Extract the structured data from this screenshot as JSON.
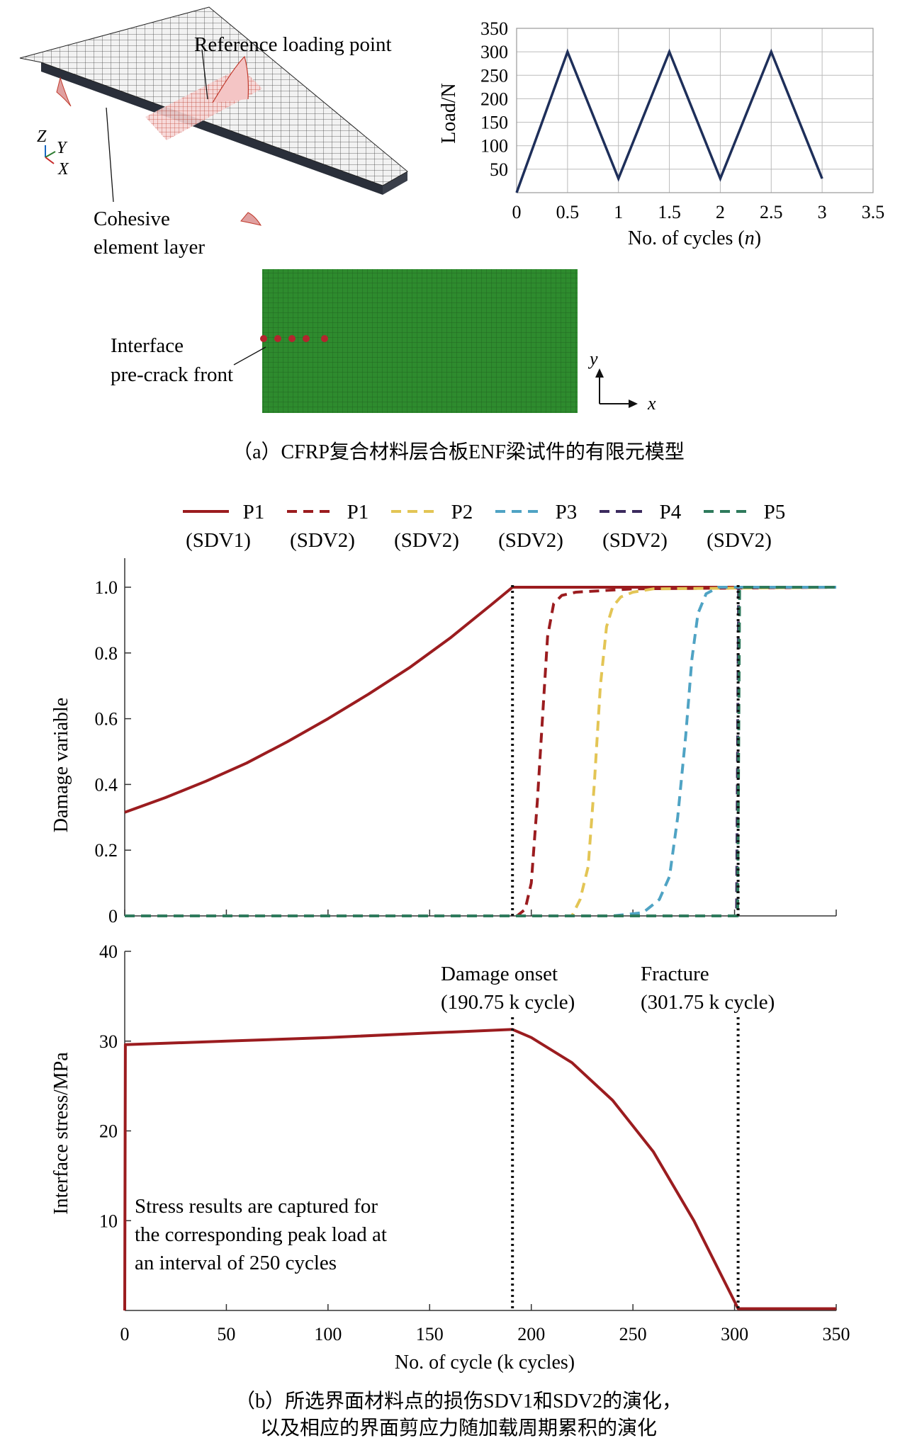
{
  "panel_a": {
    "caption": "（a）CFRP复合材料层合板ENF梁试件的有限元模型",
    "model_3d": {
      "reference_label": "Reference loading point",
      "cohesive_label_1": "Cohesive",
      "cohesive_label_2": "element layer",
      "axis_z": "Z",
      "axis_y": "Y",
      "axis_x": "X"
    },
    "mesh_2d": {
      "precrack_label_1": "Interface",
      "precrack_label_2": "pre-crack front",
      "axis_y": "y",
      "axis_x": "x",
      "colors": {
        "mesh": "#2e8b2e",
        "markers": "#b3262e"
      }
    }
  },
  "panel_b": {
    "caption_line1": "（b）所选界面材料点的损伤SDV1和SDV2的演化，",
    "caption_line2": "以及相应的界面剪应力随加载周期累积的演化"
  },
  "chart_data": [
    {
      "type": "line",
      "x": [
        0,
        0.5,
        1,
        1.5,
        2,
        2.5,
        3
      ],
      "values": [
        0,
        300,
        30,
        300,
        30,
        300,
        30
      ],
      "xlabel": "No. of cycles (n)",
      "ylabel": "Load/N",
      "xlim": [
        0,
        3.5
      ],
      "ylim": [
        0,
        350
      ],
      "xticks": [
        "0",
        "0.5",
        "1",
        "1.5",
        "2",
        "2.5",
        "3",
        "3.5"
      ],
      "yticks": [
        "50",
        "100",
        "150",
        "200",
        "250",
        "300",
        "350"
      ],
      "grid": true,
      "colors": {
        "line": "#1e2f5a",
        "grid": "#bbbbbb"
      }
    },
    {
      "type": "line",
      "ylabel": "Damage variable",
      "xlim": [
        0,
        350
      ],
      "ylim": [
        0,
        1.1
      ],
      "yticks": [
        "0",
        "0.2",
        "0.4",
        "0.6",
        "0.8",
        "1.0"
      ],
      "legend_position": "top",
      "legend": [
        {
          "l1": "P1",
          "l2": "(SDV1)",
          "dash": "solid",
          "color": "#9b1c1f"
        },
        {
          "l1": "P1",
          "l2": "(SDV2)",
          "dash": "dashed",
          "color": "#9b1c1f"
        },
        {
          "l1": "P2",
          "l2": "(SDV2)",
          "dash": "dashed",
          "color": "#e3c555"
        },
        {
          "l1": "P3",
          "l2": "(SDV2)",
          "dash": "dashed",
          "color": "#4fa3c4"
        },
        {
          "l1": "P4",
          "l2": "(SDV2)",
          "dash": "dashed",
          "color": "#3b2a5e"
        },
        {
          "l1": "P5",
          "l2": "(SDV2)",
          "dash": "dashed",
          "color": "#2e7a5c"
        }
      ],
      "series": [
        {
          "name": "P1 (SDV1)",
          "color": "#9b1c1f",
          "dash": "solid",
          "x": [
            0,
            20,
            40,
            60,
            80,
            100,
            120,
            140,
            160,
            180,
            190.75,
            350
          ],
          "values": [
            0.315,
            0.36,
            0.41,
            0.465,
            0.53,
            0.6,
            0.675,
            0.755,
            0.845,
            0.945,
            1.0,
            1.0
          ]
        },
        {
          "name": "P1 (SDV2)",
          "color": "#9b1c1f",
          "dash": "dashed",
          "x": [
            0,
            193,
            197,
            200,
            203,
            206,
            208,
            211,
            215,
            222,
            250,
            350
          ],
          "values": [
            0,
            0,
            0.02,
            0.1,
            0.35,
            0.65,
            0.85,
            0.95,
            0.975,
            0.985,
            0.995,
            1.0
          ]
        },
        {
          "name": "P2 (SDV2)",
          "color": "#e3c555",
          "dash": "dashed",
          "x": [
            0,
            220,
            224,
            228,
            231,
            234,
            237,
            240,
            244,
            250,
            260,
            350
          ],
          "values": [
            0,
            0,
            0.05,
            0.15,
            0.4,
            0.7,
            0.88,
            0.94,
            0.97,
            0.985,
            0.995,
            1.0
          ]
        },
        {
          "name": "P3 (SDV2)",
          "color": "#4fa3c4",
          "dash": "dashed",
          "x": [
            0,
            240,
            255,
            263,
            268,
            272,
            276,
            279,
            282,
            286,
            292,
            350
          ],
          "values": [
            0,
            0,
            0.01,
            0.05,
            0.12,
            0.3,
            0.55,
            0.78,
            0.92,
            0.98,
            1.0,
            1.0
          ]
        },
        {
          "name": "P4 (SDV2)",
          "color": "#3b2a5e",
          "dash": "dashed",
          "x": [
            0,
            301,
            302,
            350
          ],
          "values": [
            0,
            0,
            1.0,
            1.0
          ]
        },
        {
          "name": "P5 (SDV2)",
          "color": "#2e7a5c",
          "dash": "dashed",
          "x": [
            0,
            301.5,
            302.5,
            350
          ],
          "values": [
            0,
            0,
            1.0,
            1.0
          ]
        }
      ],
      "vlines": [
        190.75,
        301.75
      ]
    },
    {
      "type": "line",
      "xlabel": "No. of cycle (k cycles)",
      "ylabel": "Interface stress/MPa",
      "xlim": [
        0,
        350
      ],
      "ylim": [
        0,
        40
      ],
      "xticks": [
        "0",
        "50",
        "100",
        "150",
        "200",
        "250",
        "300",
        "350"
      ],
      "yticks": [
        "10",
        "20",
        "30",
        "40"
      ],
      "series": [
        {
          "name": "",
          "color": "#9b1c1f",
          "x": [
            0,
            0.3,
            50,
            100,
            150,
            190.75,
            200,
            220,
            240,
            260,
            280,
            301.75,
            350
          ],
          "values": [
            0,
            29.6,
            30.0,
            30.4,
            30.9,
            31.3,
            30.4,
            27.6,
            23.4,
            17.7,
            10.0,
            0.2,
            0.2
          ]
        }
      ],
      "vlines": [
        190.75,
        301.75
      ],
      "annotations": {
        "onset_1": "Damage onset",
        "onset_2": "(190.75 k cycle)",
        "fracture_1": "Fracture",
        "fracture_2": "(301.75 k cycle)",
        "note_1": "Stress results are captured for",
        "note_2": "the corresponding peak load at",
        "note_3": "an interval of 250 cycles"
      }
    }
  ]
}
